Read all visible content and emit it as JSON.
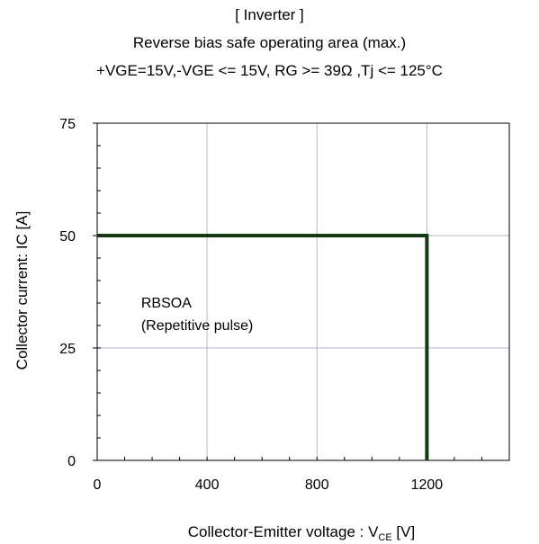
{
  "chart_data": {
    "type": "line",
    "title": "[ Inverter ]",
    "subtitle": "Reverse bias safe operating area (max.)",
    "conditions": "+VGE=15V,-VGE <= 15V, RG >= 39Ω ,Tj <= 125°C",
    "xlabel_main": "Collector-Emitter voltage : V",
    "xlabel_sub": "CE",
    "xlabel_unit": " [V]",
    "ylabel": "Collector current: IC [A]",
    "xlim": [
      0,
      1500
    ],
    "ylim": [
      0,
      75
    ],
    "x_ticks": [
      0,
      400,
      800,
      1200
    ],
    "x_tick_labels": [
      "0",
      "400",
      "800",
      "1200"
    ],
    "y_ticks": [
      0,
      25,
      50,
      75
    ],
    "y_tick_labels": [
      "0",
      "25",
      "50",
      "75"
    ],
    "x_minor_step": 100,
    "y_minor_step": 5,
    "grid": true,
    "series": [
      {
        "x": [
          0,
          1200,
          1200
        ],
        "y": [
          50,
          50,
          0
        ],
        "color": "#0f3d0f"
      }
    ],
    "annotations": [
      {
        "text": "RBSOA",
        "x": 160,
        "y": 34
      },
      {
        "text": "(Repetitive pulse)",
        "x": 160,
        "y": 29
      }
    ]
  }
}
